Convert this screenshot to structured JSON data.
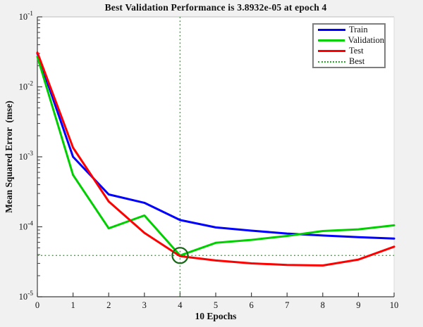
{
  "figure": {
    "background_color": "#f1f1f1",
    "plot_background_color": "#ffffff"
  },
  "chart_data": {
    "type": "line",
    "title": "Best Validation Performance is 3.8932e-05 at epoch 4",
    "xlabel": "10 Epochs",
    "ylabel": "Mean Squared Error  (mse)",
    "yscale": "log",
    "grid": false,
    "xlim": [
      0,
      10
    ],
    "ylim_log10": [
      -5,
      -1
    ],
    "x": [
      0,
      1,
      2,
      3,
      4,
      5,
      6,
      7,
      8,
      9,
      10
    ],
    "x_tick_labels": [
      "0",
      "1",
      "2",
      "3",
      "4",
      "5",
      "6",
      "7",
      "8",
      "9",
      "10"
    ],
    "y_tick_labels": [
      {
        "base": "10",
        "exp": "-1"
      },
      {
        "base": "10",
        "exp": "-2"
      },
      {
        "base": "10",
        "exp": "-3"
      },
      {
        "base": "10",
        "exp": "-4"
      },
      {
        "base": "10",
        "exp": "-5"
      }
    ],
    "series": [
      {
        "name": "Train",
        "color": "#0000ff",
        "style": "solid",
        "values": [
          0.03,
          0.001,
          0.00029,
          0.00022,
          0.000125,
          9.8e-05,
          8.8e-05,
          8e-05,
          7.5e-05,
          7.1e-05,
          6.8e-05
        ]
      },
      {
        "name": "Validation",
        "color": "#00cf00",
        "style": "solid",
        "values": [
          0.027,
          0.00055,
          9.5e-05,
          0.000145,
          3.8932e-05,
          5.9e-05,
          6.5e-05,
          7.4e-05,
          8.7e-05,
          9.2e-05,
          0.000105
        ]
      },
      {
        "name": "Test",
        "color": "#ff0000",
        "style": "solid",
        "values": [
          0.031,
          0.00135,
          0.00023,
          8.2e-05,
          3.8e-05,
          3.3e-05,
          3e-05,
          2.85e-05,
          2.8e-05,
          3.4e-05,
          5.2e-05
        ]
      }
    ],
    "best": {
      "label": "Best",
      "epoch": 4,
      "value": 3.8932e-05,
      "style": "dotted"
    },
    "colors": {
      "train": "#0000ff",
      "validation": "#00cf00",
      "test": "#ff0000",
      "best_line": "#22a822",
      "best_marker": "#1a661a"
    },
    "legend": {
      "position": "top-right",
      "items": [
        {
          "label": "Train",
          "color": "#0000ff",
          "style": "solid"
        },
        {
          "label": "Validation",
          "color": "#00cf00",
          "style": "solid"
        },
        {
          "label": "Test",
          "color": "#ff0000",
          "style": "solid"
        },
        {
          "label": "Best",
          "color": "#22a822",
          "style": "dotted"
        }
      ]
    }
  }
}
